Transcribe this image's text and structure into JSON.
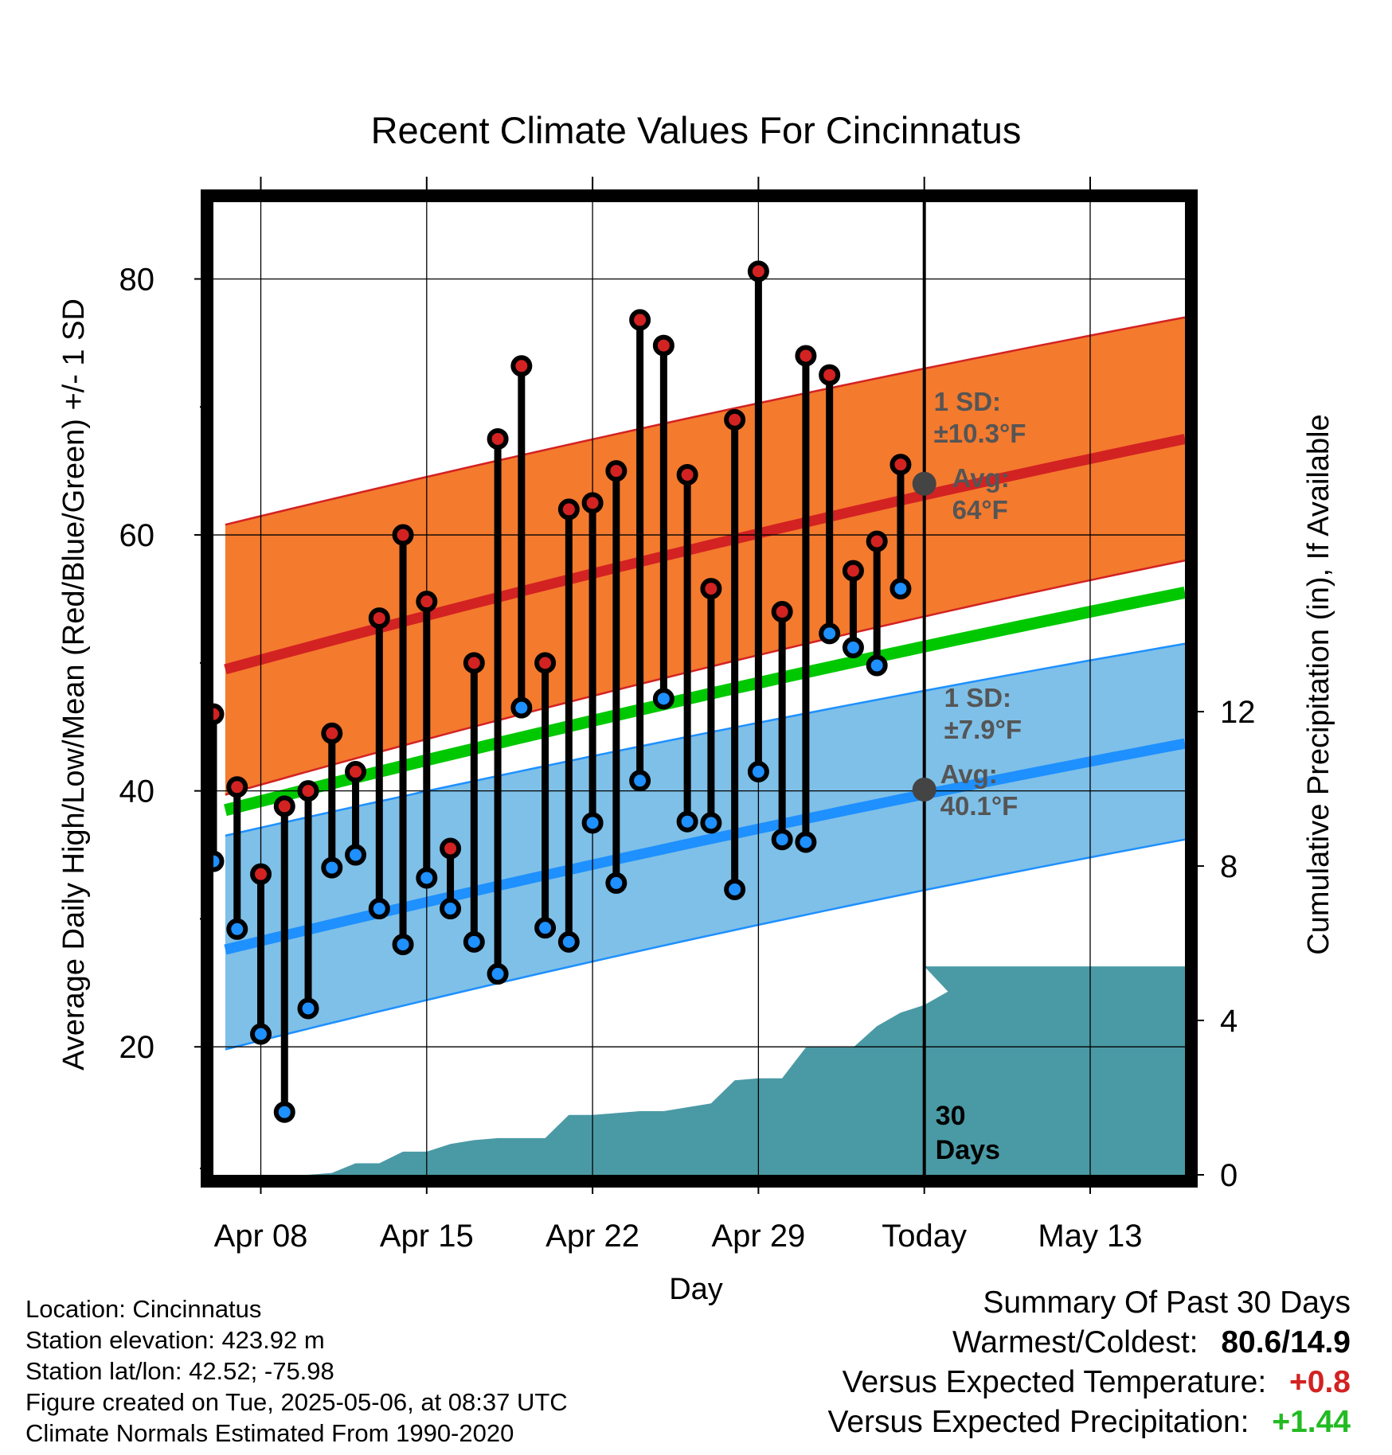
{
  "colors": {
    "high": "#d32222",
    "low": "#1e90ff",
    "mean": "#00c800",
    "high_band": "#f47a2e",
    "low_band": "#7fc0e8",
    "precip": "#4a9aa5",
    "normal_marker": "#444444",
    "positive_temp": "#d32222",
    "positive_precip": "#22bb22"
  },
  "chart_data": {
    "type": "line",
    "title": "Recent Climate Values For Cincinnatus",
    "xlabel": "Day",
    "ylabel": "Average Daily High/Low/Mean (Red/Blue/Green) +/- 1 SD",
    "y2label": "Cumulative Precipitation (in), If Available",
    "x_tick_labels": [
      "Apr 08",
      "Apr 15",
      "Apr 22",
      "Apr 29",
      "Today",
      "May 13"
    ],
    "y_tick_labels": [
      "20",
      "40",
      "60",
      "80"
    ],
    "y2_tick_labels": [
      "0",
      "4",
      "8",
      "12"
    ],
    "ylim": [
      10,
      86
    ],
    "y2lim": [
      0,
      25.2
    ],
    "x_start_label": "Apr 06",
    "x_days_count": 41,
    "today_index": 30,
    "daily_high": [
      46,
      40.3,
      33.5,
      38.8,
      40,
      44.5,
      41.5,
      53.5,
      60,
      54.8,
      35.5,
      50,
      67.5,
      73.2,
      50,
      62,
      62.5,
      65,
      76.8,
      74.8,
      64.7,
      55.8,
      69,
      80.6,
      54,
      74,
      72.5,
      57.2,
      59.5,
      65.5
    ],
    "daily_low": [
      34.5,
      29.2,
      21,
      14.9,
      23,
      34,
      35,
      30.8,
      28,
      33.2,
      30.8,
      28.2,
      25.7,
      46.5,
      29.3,
      28.2,
      37.5,
      32.8,
      40.8,
      47.2,
      37.6,
      37.5,
      32.3,
      41.5,
      36.2,
      36,
      52.3,
      51.2,
      49.8,
      55.8
    ],
    "normal_high": [
      49.5,
      67.5
    ],
    "normal_low": [
      27.6,
      43.7
    ],
    "normal_mean": [
      38.5,
      55.5
    ],
    "high_band_upper": [
      60.8,
      77
    ],
    "high_band_lower": [
      39.7,
      58
    ],
    "low_band_upper": [
      36.5,
      51.5
    ],
    "low_band_lower": [
      19.8,
      36.2
    ],
    "precip_cumulative": [
      0,
      0,
      0,
      0,
      0.05,
      0.3,
      0.3,
      0.6,
      0.6,
      0.8,
      0.9,
      0.95,
      0.95,
      0.95,
      1.55,
      1.55,
      1.6,
      1.65,
      1.65,
      1.75,
      1.85,
      2.45,
      2.5,
      2.5,
      3.3,
      3.3,
      3.3,
      3.85,
      4.2,
      4.4,
      4.75
    ],
    "precip_today_value": 5.4,
    "annotations": {
      "high_sd": "1 SD:",
      "high_sd_value": "±10.3°F",
      "high_avg_label": "Avg:",
      "high_avg_value": "64°F",
      "high_avg_point": 64,
      "low_sd": "1 SD:",
      "low_sd_value": "±7.9°F",
      "low_avg_label": "Avg:",
      "low_avg_value": "40.1°F",
      "low_avg_point": 40.1,
      "days_count": "30",
      "days_label": "Days"
    },
    "grid": true
  },
  "footer": {
    "location": "Location: Cincinnatus",
    "elevation": "Station elevation: 423.92 m",
    "latlon": "Station lat/lon: 42.52; -75.98",
    "created": "Figure created on Tue, 2025-05-06, at 08:37 UTC",
    "normals": "Climate Normals Estimated From 1990-2020"
  },
  "summary": {
    "title": "Summary Of Past 30 Days",
    "warmest_label": "Warmest/Coldest:",
    "warmest_value": "80.6/14.9",
    "temp_label": "Versus Expected Temperature:",
    "temp_value": "+0.8",
    "precip_label": "Versus Expected Precipitation:",
    "precip_value": "+1.44"
  }
}
